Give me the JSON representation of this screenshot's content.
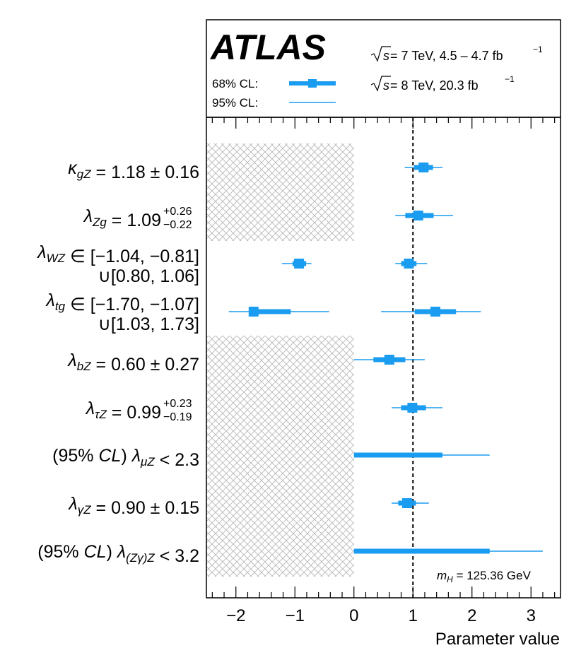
{
  "header": {
    "experiment": "ATLAS",
    "energy_lines": [
      {
        "sqrt": "s",
        "text": " = 7 TeV, 4.5 – 4.7 fb",
        "sup": "−1"
      },
      {
        "sqrt": "s",
        "text": " = 8 TeV, 20.3 fb",
        "sup": "−1"
      }
    ],
    "legend": [
      {
        "label": "68% CL:",
        "style": "thick",
        "color": "#1a9cf0"
      },
      {
        "label": "95% CL:",
        "style": "thin",
        "color": "#1a9cf0"
      }
    ]
  },
  "mass_label": {
    "sym": "m",
    "sub": "H",
    "text": " = 125.36 GeV"
  },
  "rows": [
    {
      "label": [
        {
          "t": "κ",
          "i": true
        },
        {
          "t": "gZ",
          "i": true,
          "sub": true
        },
        {
          "t": " = 1.18 ± 0.16"
        }
      ]
    },
    {
      "label": [
        {
          "t": "λ",
          "i": true
        },
        {
          "t": "Zg",
          "i": true,
          "sub": true
        },
        {
          "t": " = 1.09"
        }
      ],
      "sup": "+0.26",
      "sub": "−0.22"
    },
    {
      "label": [
        {
          "t": "λ",
          "i": true
        },
        {
          "t": "WZ",
          "i": true,
          "sub": true
        },
        {
          "t": " ∈ [−1.04, −0.81]"
        }
      ],
      "label2": "∪[0.80, 1.06]"
    },
    {
      "label": [
        {
          "t": "λ",
          "i": true
        },
        {
          "t": "tg",
          "i": true,
          "sub": true
        },
        {
          "t": " ∈ [−1.70, −1.07]"
        }
      ],
      "label2": "∪[1.03, 1.73]"
    },
    {
      "label": [
        {
          "t": "λ",
          "i": true
        },
        {
          "t": "bZ",
          "i": true,
          "sub": true
        },
        {
          "t": " = 0.60 ± 0.27"
        }
      ]
    },
    {
      "label": [
        {
          "t": "λ",
          "i": true
        },
        {
          "t": "τZ",
          "i": true,
          "sub": true
        },
        {
          "t": " = 0.99"
        }
      ],
      "sup": "+0.23",
      "sub": "−0.19"
    },
    {
      "label": [
        {
          "t": "(95% "
        },
        {
          "t": "CL",
          "i": true
        },
        {
          "t": ")   "
        },
        {
          "t": "λ",
          "i": true
        },
        {
          "t": "μZ",
          "i": true,
          "sub": true
        },
        {
          "t": " < 2.3"
        }
      ]
    },
    {
      "label": [
        {
          "t": "λ",
          "i": true
        },
        {
          "t": "γZ",
          "i": true,
          "sub": true
        },
        {
          "t": " = 0.90 ± 0.15"
        }
      ]
    },
    {
      "label": [
        {
          "t": "(95% "
        },
        {
          "t": "CL",
          "i": true
        },
        {
          "t": ")   "
        },
        {
          "t": "λ",
          "i": true
        },
        {
          "t": "(Zγ)Z",
          "i": true,
          "sub": true
        },
        {
          "t": " < 3.2"
        }
      ]
    }
  ],
  "chart_data": {
    "type": "scatter",
    "xlabel": "Parameter value",
    "xlim": [
      -2.5,
      3.5
    ],
    "xticks": [
      -2,
      -1,
      0,
      1,
      2,
      3
    ],
    "xtick_labels": [
      "−2",
      "−1",
      "0",
      "1",
      "2",
      "3"
    ],
    "reference_line": 1,
    "series": [
      {
        "parameter": "κgZ",
        "points": [
          {
            "center": 1.18,
            "cl68": [
              1.02,
              1.34
            ],
            "cl95": [
              0.86,
              1.5
            ]
          }
        ]
      },
      {
        "parameter": "λZg",
        "points": [
          {
            "center": 1.09,
            "cl68": [
              0.87,
              1.35
            ],
            "cl95": [
              0.7,
              1.68
            ]
          }
        ]
      },
      {
        "parameter": "λWZ",
        "points": [
          {
            "center": -0.93,
            "cl68": [
              -1.04,
              -0.81
            ],
            "cl95": [
              -1.22,
              -0.72
            ]
          },
          {
            "center": 0.93,
            "cl68": [
              0.8,
              1.06
            ],
            "cl95": [
              0.7,
              1.24
            ]
          }
        ]
      },
      {
        "parameter": "λtg",
        "points": [
          {
            "center": -1.7,
            "cl68": [
              -1.7,
              -1.07
            ],
            "cl95": [
              -2.12,
              -0.42
            ]
          },
          {
            "center": 1.38,
            "cl68": [
              1.03,
              1.73
            ],
            "cl95": [
              0.46,
              2.15
            ]
          }
        ]
      },
      {
        "parameter": "λbZ",
        "points": [
          {
            "center": 0.6,
            "cl68": [
              0.33,
              0.87
            ],
            "cl95": [
              0.0,
              1.2
            ]
          }
        ]
      },
      {
        "parameter": "λτZ",
        "points": [
          {
            "center": 0.99,
            "cl68": [
              0.8,
              1.22
            ],
            "cl95": [
              0.64,
              1.5
            ]
          }
        ]
      },
      {
        "parameter": "λμZ",
        "points": [
          {
            "center": null,
            "cl68": [
              0.0,
              1.5
            ],
            "cl95": [
              0.0,
              2.3
            ]
          }
        ]
      },
      {
        "parameter": "λγZ",
        "points": [
          {
            "center": 0.9,
            "cl68": [
              0.75,
              1.05
            ],
            "cl95": [
              0.64,
              1.27
            ]
          }
        ]
      },
      {
        "parameter": "λ(Zγ)Z",
        "points": [
          {
            "center": null,
            "cl68": [
              0.0,
              2.3
            ],
            "cl95": [
              0.0,
              3.2
            ]
          }
        ]
      }
    ],
    "excluded_regions": [
      {
        "x": [
          -2.5,
          0
        ],
        "rows": [
          0,
          1
        ]
      },
      {
        "x": [
          -2.5,
          0
        ],
        "rows": [
          4,
          8
        ]
      }
    ],
    "grid": false,
    "legend_placement": "top-left"
  }
}
